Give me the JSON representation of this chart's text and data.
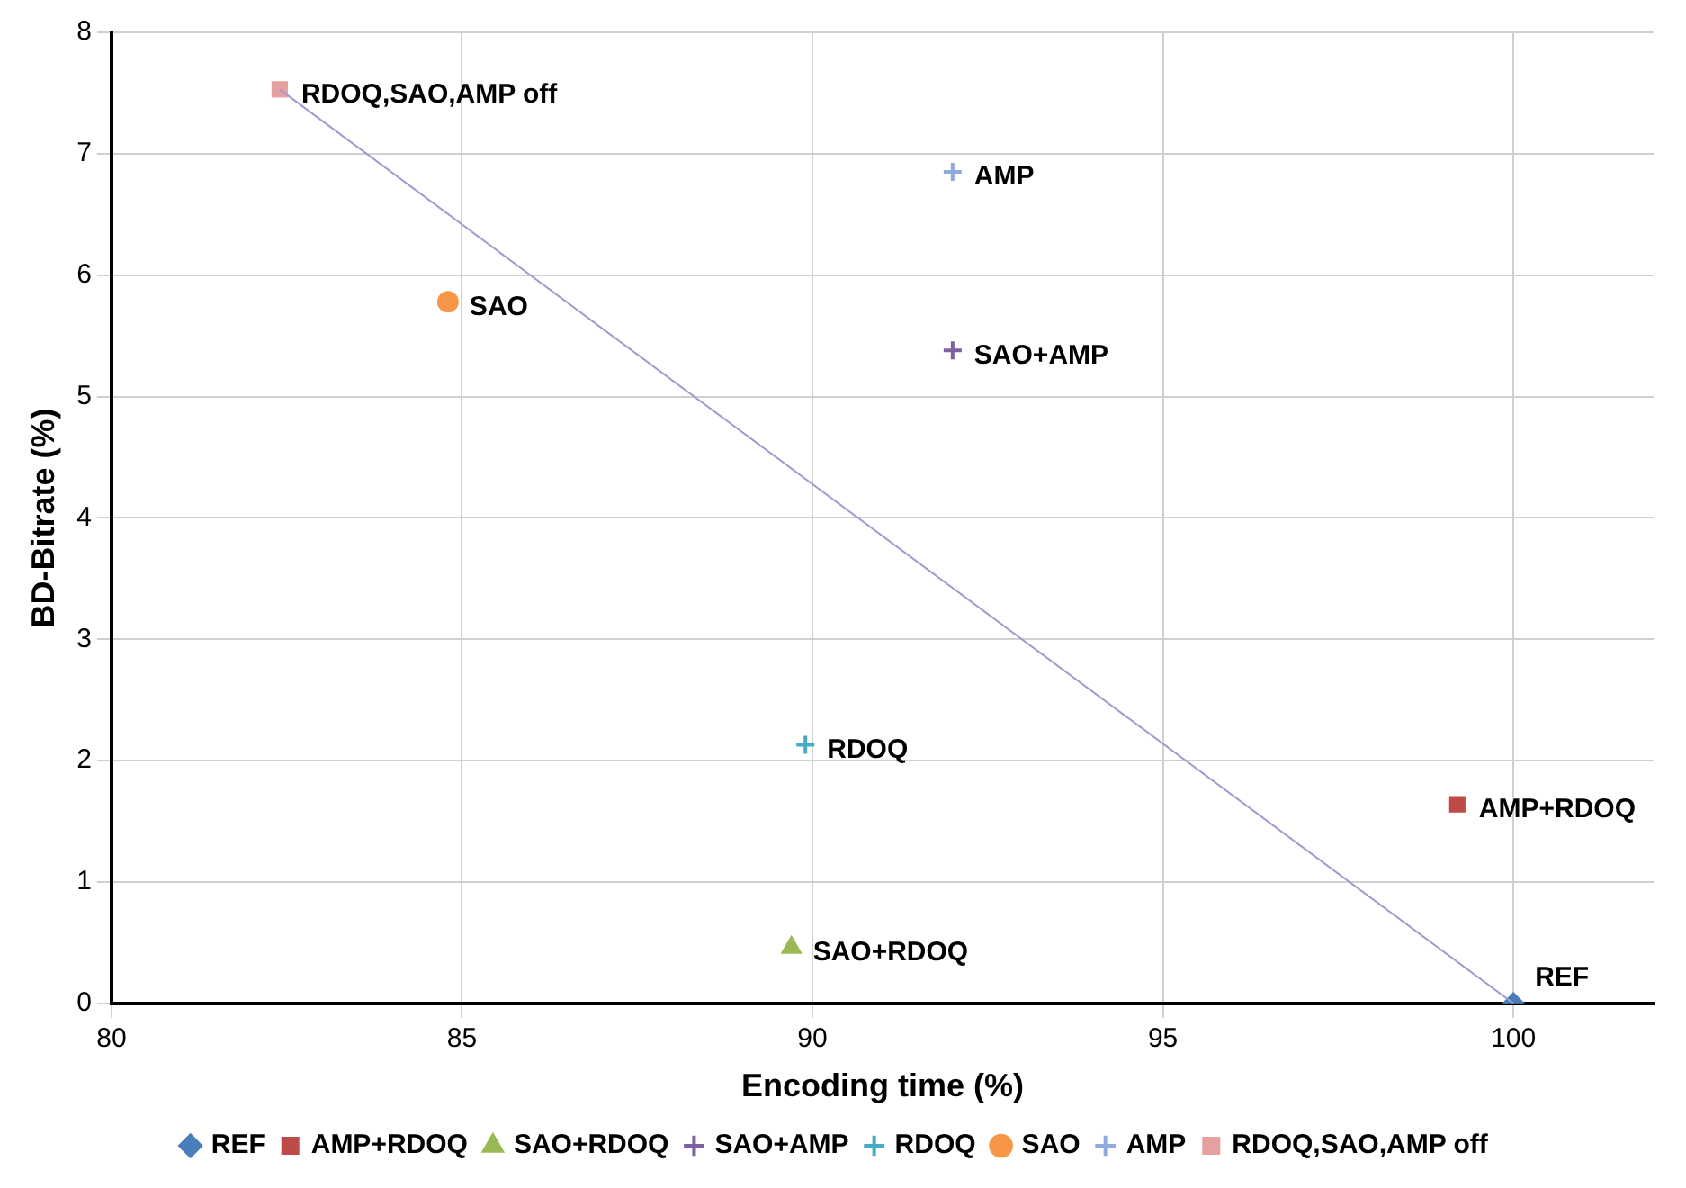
{
  "chart_data": {
    "type": "scatter",
    "xlabel": "Encoding time (%)",
    "ylabel": "BD-Bitrate (%)",
    "xlim": [
      80,
      102
    ],
    "xticks": [
      80,
      85,
      90,
      95,
      100
    ],
    "ylim": [
      0,
      8
    ],
    "yticks": [
      0,
      1,
      2,
      3,
      4,
      5,
      6,
      7,
      8
    ],
    "grid": true,
    "legend": "bottom",
    "series": [
      {
        "name": "REF",
        "color": "#4a7ebb",
        "marker": "diamond",
        "x": [
          100
        ],
        "values": [
          0
        ]
      },
      {
        "name": "AMP+RDOQ",
        "color": "#be4b48",
        "marker": "square",
        "x": [
          99.2
        ],
        "values": [
          1.64
        ]
      },
      {
        "name": "SAO+RDOQ",
        "color": "#98b954",
        "marker": "triangle",
        "x": [
          89.7
        ],
        "values": [
          0.46
        ]
      },
      {
        "name": "SAO+AMP",
        "color": "#7d60a0",
        "marker": "cross",
        "x": [
          92
        ],
        "values": [
          5.38
        ]
      },
      {
        "name": "RDOQ",
        "color": "#46aac5",
        "marker": "cross",
        "x": [
          89.9
        ],
        "values": [
          2.13
        ]
      },
      {
        "name": "SAO",
        "color": "#f79646",
        "marker": "circle",
        "x": [
          84.8
        ],
        "values": [
          5.78
        ]
      },
      {
        "name": "AMP",
        "color": "#8faadc",
        "marker": "cross",
        "x": [
          92
        ],
        "values": [
          6.85
        ]
      },
      {
        "name": "RDOQ,SAO,AMP off",
        "color": "#e6a0a0",
        "marker": "square",
        "x": [
          82.4
        ],
        "values": [
          7.53
        ]
      },
      {
        "type": "line",
        "color": "#9a9cd0",
        "marker": "none",
        "x": [
          82.4,
          100
        ],
        "values": [
          7.53,
          0
        ]
      }
    ]
  }
}
